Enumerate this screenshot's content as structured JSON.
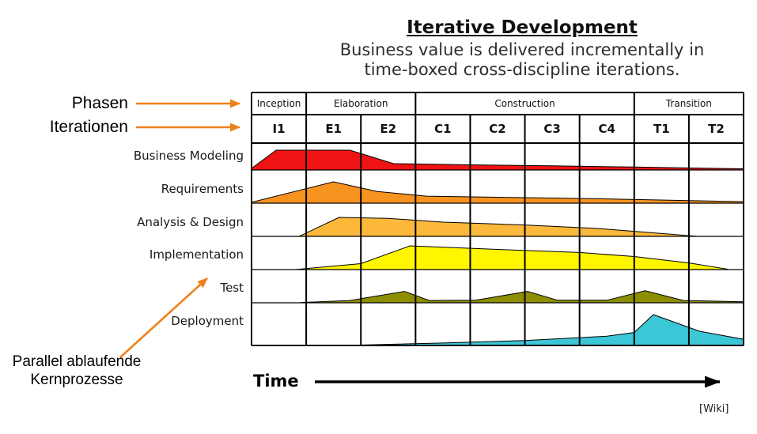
{
  "header": {
    "title": "Iterative Development",
    "subtitle_line1": "Business value is delivered incrementally in",
    "subtitle_line2": "time-boxed cross-discipline iterations."
  },
  "annotations": {
    "phases_label": "Phasen",
    "iterations_label": "Iterationen",
    "parallel_line1": "Parallel ablaufende",
    "parallel_line2": "Kernprozesse",
    "time_label": "Time",
    "source_label": "[Wiki]",
    "arrow_color": "#F08019"
  },
  "chart_data": {
    "type": "area",
    "title": "Iterative Development",
    "xlabel": "Time",
    "phases": [
      {
        "label": "Inception",
        "span": 1
      },
      {
        "label": "Elaboration",
        "span": 2
      },
      {
        "label": "Construction",
        "span": 4
      },
      {
        "label": "Transition",
        "span": 2
      }
    ],
    "iterations": [
      "I1",
      "E1",
      "E2",
      "C1",
      "C2",
      "C3",
      "C4",
      "T1",
      "T2"
    ],
    "disciplines": [
      {
        "name": "Business Modeling",
        "color": "#EE1414",
        "profile": [
          [
            0,
            0.08
          ],
          [
            0.45,
            1
          ],
          [
            1.8,
            1
          ],
          [
            2.6,
            0.32
          ],
          [
            4,
            0.26
          ],
          [
            5.5,
            0.21
          ],
          [
            7,
            0.15
          ],
          [
            9,
            0.06
          ]
        ]
      },
      {
        "name": "Requirements",
        "color": "#F79420",
        "profile": [
          [
            0,
            0.04
          ],
          [
            1.5,
            1
          ],
          [
            2.3,
            0.55
          ],
          [
            3.2,
            0.33
          ],
          [
            5,
            0.26
          ],
          [
            6.5,
            0.2
          ],
          [
            8,
            0.12
          ],
          [
            9,
            0.07
          ]
        ]
      },
      {
        "name": "Analysis & Design",
        "color": "#FBB83B",
        "profile": [
          [
            0.87,
            0
          ],
          [
            1.6,
            1
          ],
          [
            2.5,
            0.95
          ],
          [
            3.5,
            0.75
          ],
          [
            5,
            0.6
          ],
          [
            6.3,
            0.42
          ],
          [
            7.3,
            0.2
          ],
          [
            8.13,
            0.01
          ]
        ]
      },
      {
        "name": "Implementation",
        "color": "#FFF600",
        "profile": [
          [
            0.8,
            0
          ],
          [
            2,
            0.25
          ],
          [
            2.9,
            1
          ],
          [
            4.5,
            0.85
          ],
          [
            6,
            0.72
          ],
          [
            7,
            0.55
          ],
          [
            8,
            0.28
          ],
          [
            8.7,
            0.02
          ]
        ]
      },
      {
        "name": "Test",
        "color": "#8D8E00",
        "profile": [
          [
            0.9,
            0.02
          ],
          [
            1.8,
            0.18
          ],
          [
            2.8,
            0.9
          ],
          [
            3.25,
            0.18
          ],
          [
            4.1,
            0.2
          ],
          [
            5.05,
            0.9
          ],
          [
            5.6,
            0.2
          ],
          [
            6.5,
            0.2
          ],
          [
            7.2,
            0.95
          ],
          [
            7.9,
            0.18
          ],
          [
            9,
            0.08
          ]
        ]
      },
      {
        "name": "Deployment",
        "color": "#3CC7D7",
        "profile": [
          [
            1.9,
            0.01
          ],
          [
            3.5,
            0.08
          ],
          [
            5,
            0.16
          ],
          [
            6.5,
            0.3
          ],
          [
            7,
            0.42
          ],
          [
            7.35,
            1
          ],
          [
            8.2,
            0.46
          ],
          [
            9,
            0.2
          ]
        ]
      }
    ]
  }
}
